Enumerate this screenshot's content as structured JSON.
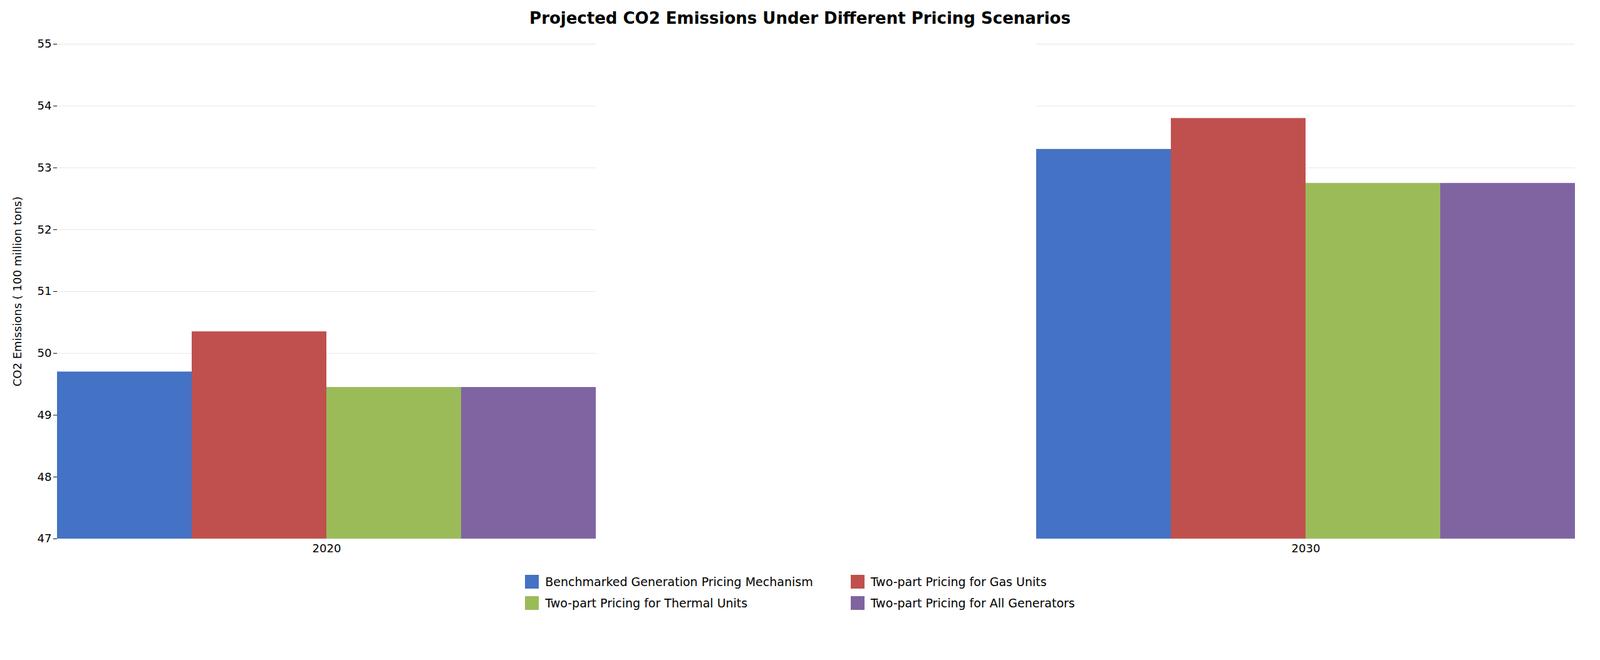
{
  "chart_data": {
    "type": "bar",
    "title": "Projected CO2 Emissions Under Different Pricing Scenarios",
    "ylabel": "CO2 Emissions ( 100 million tons)",
    "categories": [
      "2020",
      "2030"
    ],
    "series": [
      {
        "name": "Benchmarked Generation Pricing Mechanism",
        "values": [
          49.7,
          53.3
        ],
        "color": "#4472C4"
      },
      {
        "name": "Two-part Pricing for Gas Units",
        "values": [
          50.35,
          53.8
        ],
        "color": "#C0504D"
      },
      {
        "name": "Two-part Pricing for Thermal Units",
        "values": [
          49.45,
          52.75
        ],
        "color": "#9BBB59"
      },
      {
        "name": "Two-part Pricing for All Generators",
        "values": [
          49.45,
          52.75
        ],
        "color": "#8064A2"
      }
    ],
    "ylim": [
      47,
      55
    ],
    "yticks": [
      47,
      48,
      49,
      50,
      51,
      52,
      53,
      54,
      55
    ],
    "grid": true,
    "legend": "bottom"
  }
}
